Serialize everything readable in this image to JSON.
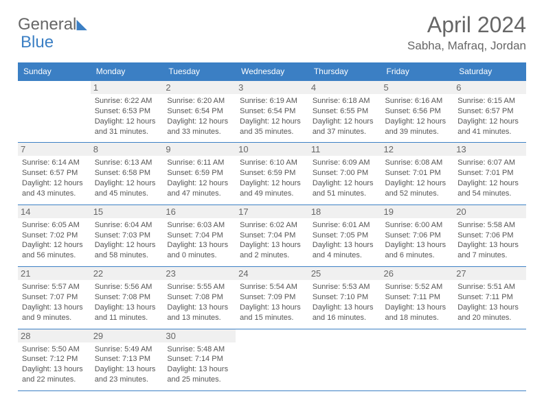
{
  "logo": {
    "text1": "General",
    "text2": "Blue"
  },
  "title": "April 2024",
  "location": "Sabha, Mafraq, Jordan",
  "colors": {
    "accent": "#3b7fc4",
    "text": "#555555",
    "headerRow": "#f0f0f0"
  },
  "dayHeaders": [
    "Sunday",
    "Monday",
    "Tuesday",
    "Wednesday",
    "Thursday",
    "Friday",
    "Saturday"
  ],
  "weeks": [
    [
      {
        "empty": true
      },
      {
        "day": "1",
        "sunrise": "Sunrise: 6:22 AM",
        "sunset": "Sunset: 6:53 PM",
        "dl1": "Daylight: 12 hours",
        "dl2": "and 31 minutes."
      },
      {
        "day": "2",
        "sunrise": "Sunrise: 6:20 AM",
        "sunset": "Sunset: 6:54 PM",
        "dl1": "Daylight: 12 hours",
        "dl2": "and 33 minutes."
      },
      {
        "day": "3",
        "sunrise": "Sunrise: 6:19 AM",
        "sunset": "Sunset: 6:54 PM",
        "dl1": "Daylight: 12 hours",
        "dl2": "and 35 minutes."
      },
      {
        "day": "4",
        "sunrise": "Sunrise: 6:18 AM",
        "sunset": "Sunset: 6:55 PM",
        "dl1": "Daylight: 12 hours",
        "dl2": "and 37 minutes."
      },
      {
        "day": "5",
        "sunrise": "Sunrise: 6:16 AM",
        "sunset": "Sunset: 6:56 PM",
        "dl1": "Daylight: 12 hours",
        "dl2": "and 39 minutes."
      },
      {
        "day": "6",
        "sunrise": "Sunrise: 6:15 AM",
        "sunset": "Sunset: 6:57 PM",
        "dl1": "Daylight: 12 hours",
        "dl2": "and 41 minutes."
      }
    ],
    [
      {
        "day": "7",
        "sunrise": "Sunrise: 6:14 AM",
        "sunset": "Sunset: 6:57 PM",
        "dl1": "Daylight: 12 hours",
        "dl2": "and 43 minutes."
      },
      {
        "day": "8",
        "sunrise": "Sunrise: 6:13 AM",
        "sunset": "Sunset: 6:58 PM",
        "dl1": "Daylight: 12 hours",
        "dl2": "and 45 minutes."
      },
      {
        "day": "9",
        "sunrise": "Sunrise: 6:11 AM",
        "sunset": "Sunset: 6:59 PM",
        "dl1": "Daylight: 12 hours",
        "dl2": "and 47 minutes."
      },
      {
        "day": "10",
        "sunrise": "Sunrise: 6:10 AM",
        "sunset": "Sunset: 6:59 PM",
        "dl1": "Daylight: 12 hours",
        "dl2": "and 49 minutes."
      },
      {
        "day": "11",
        "sunrise": "Sunrise: 6:09 AM",
        "sunset": "Sunset: 7:00 PM",
        "dl1": "Daylight: 12 hours",
        "dl2": "and 51 minutes."
      },
      {
        "day": "12",
        "sunrise": "Sunrise: 6:08 AM",
        "sunset": "Sunset: 7:01 PM",
        "dl1": "Daylight: 12 hours",
        "dl2": "and 52 minutes."
      },
      {
        "day": "13",
        "sunrise": "Sunrise: 6:07 AM",
        "sunset": "Sunset: 7:01 PM",
        "dl1": "Daylight: 12 hours",
        "dl2": "and 54 minutes."
      }
    ],
    [
      {
        "day": "14",
        "sunrise": "Sunrise: 6:05 AM",
        "sunset": "Sunset: 7:02 PM",
        "dl1": "Daylight: 12 hours",
        "dl2": "and 56 minutes."
      },
      {
        "day": "15",
        "sunrise": "Sunrise: 6:04 AM",
        "sunset": "Sunset: 7:03 PM",
        "dl1": "Daylight: 12 hours",
        "dl2": "and 58 minutes."
      },
      {
        "day": "16",
        "sunrise": "Sunrise: 6:03 AM",
        "sunset": "Sunset: 7:04 PM",
        "dl1": "Daylight: 13 hours",
        "dl2": "and 0 minutes."
      },
      {
        "day": "17",
        "sunrise": "Sunrise: 6:02 AM",
        "sunset": "Sunset: 7:04 PM",
        "dl1": "Daylight: 13 hours",
        "dl2": "and 2 minutes."
      },
      {
        "day": "18",
        "sunrise": "Sunrise: 6:01 AM",
        "sunset": "Sunset: 7:05 PM",
        "dl1": "Daylight: 13 hours",
        "dl2": "and 4 minutes."
      },
      {
        "day": "19",
        "sunrise": "Sunrise: 6:00 AM",
        "sunset": "Sunset: 7:06 PM",
        "dl1": "Daylight: 13 hours",
        "dl2": "and 6 minutes."
      },
      {
        "day": "20",
        "sunrise": "Sunrise: 5:58 AM",
        "sunset": "Sunset: 7:06 PM",
        "dl1": "Daylight: 13 hours",
        "dl2": "and 7 minutes."
      }
    ],
    [
      {
        "day": "21",
        "sunrise": "Sunrise: 5:57 AM",
        "sunset": "Sunset: 7:07 PM",
        "dl1": "Daylight: 13 hours",
        "dl2": "and 9 minutes."
      },
      {
        "day": "22",
        "sunrise": "Sunrise: 5:56 AM",
        "sunset": "Sunset: 7:08 PM",
        "dl1": "Daylight: 13 hours",
        "dl2": "and 11 minutes."
      },
      {
        "day": "23",
        "sunrise": "Sunrise: 5:55 AM",
        "sunset": "Sunset: 7:08 PM",
        "dl1": "Daylight: 13 hours",
        "dl2": "and 13 minutes."
      },
      {
        "day": "24",
        "sunrise": "Sunrise: 5:54 AM",
        "sunset": "Sunset: 7:09 PM",
        "dl1": "Daylight: 13 hours",
        "dl2": "and 15 minutes."
      },
      {
        "day": "25",
        "sunrise": "Sunrise: 5:53 AM",
        "sunset": "Sunset: 7:10 PM",
        "dl1": "Daylight: 13 hours",
        "dl2": "and 16 minutes."
      },
      {
        "day": "26",
        "sunrise": "Sunrise: 5:52 AM",
        "sunset": "Sunset: 7:11 PM",
        "dl1": "Daylight: 13 hours",
        "dl2": "and 18 minutes."
      },
      {
        "day": "27",
        "sunrise": "Sunrise: 5:51 AM",
        "sunset": "Sunset: 7:11 PM",
        "dl1": "Daylight: 13 hours",
        "dl2": "and 20 minutes."
      }
    ],
    [
      {
        "day": "28",
        "sunrise": "Sunrise: 5:50 AM",
        "sunset": "Sunset: 7:12 PM",
        "dl1": "Daylight: 13 hours",
        "dl2": "and 22 minutes."
      },
      {
        "day": "29",
        "sunrise": "Sunrise: 5:49 AM",
        "sunset": "Sunset: 7:13 PM",
        "dl1": "Daylight: 13 hours",
        "dl2": "and 23 minutes."
      },
      {
        "day": "30",
        "sunrise": "Sunrise: 5:48 AM",
        "sunset": "Sunset: 7:14 PM",
        "dl1": "Daylight: 13 hours",
        "dl2": "and 25 minutes."
      },
      {
        "empty": true
      },
      {
        "empty": true
      },
      {
        "empty": true
      },
      {
        "empty": true
      }
    ]
  ]
}
